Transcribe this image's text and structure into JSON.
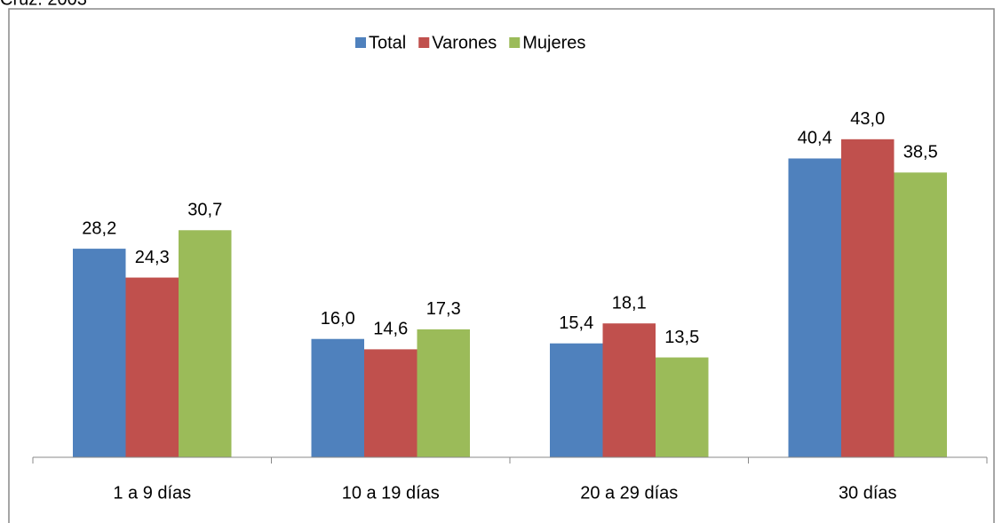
{
  "chart_data": {
    "type": "bar",
    "subtitle": "Cruz. 2003",
    "categories": [
      "1 a 9 días",
      "10 a 19 días",
      "20 a 29 días",
      "30 días"
    ],
    "series": [
      {
        "name": "Total",
        "color": "#4f81bd",
        "values": [
          28.2,
          16.0,
          15.4,
          40.4
        ],
        "value_labels": [
          "28,2",
          "16,0",
          "15,4",
          "40,4"
        ]
      },
      {
        "name": "Varones",
        "color": "#c0504d",
        "values": [
          24.3,
          14.6,
          18.1,
          43.0
        ],
        "value_labels": [
          "24,3",
          "14,6",
          "18,1",
          "43,0"
        ]
      },
      {
        "name": "Mujeres",
        "color": "#9bbb59",
        "values": [
          30.7,
          17.3,
          13.5,
          38.5
        ],
        "value_labels": [
          "30,7",
          "17,3",
          "13,5",
          "38,5"
        ]
      }
    ],
    "legend": "top"
  }
}
